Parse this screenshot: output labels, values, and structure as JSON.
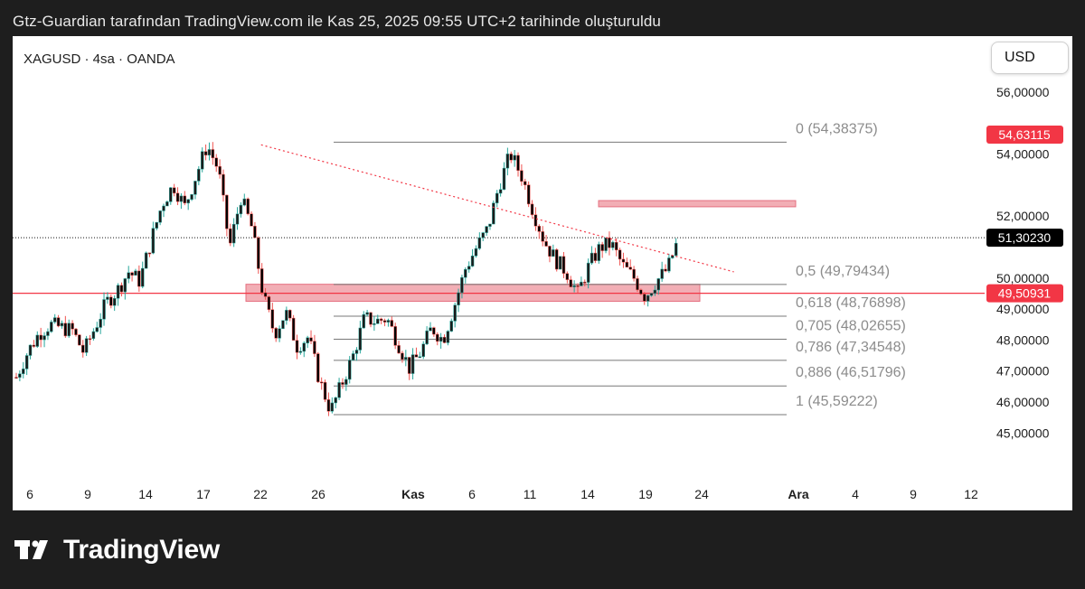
{
  "caption": "Gtz-Guardian tarafından TradingView.com ile Kas 25, 2025 09:55 UTC+2 tarihinde oluşturuldu",
  "header": {
    "symbol_line": "XAGUSD · 4sa · OANDA",
    "currency_button": "USD"
  },
  "brand": {
    "name": "TradingView"
  },
  "colors": {
    "up": "#000000",
    "down": "#000000",
    "wick_up": "#26a69a",
    "wick_down": "#ef5350",
    "zone": "#f0a0a8",
    "alert": "#f23645",
    "fib": "#787878"
  },
  "chart_data": {
    "type": "candlestick",
    "title": "XAGUSD · 4sa · OANDA",
    "ylim": [
      44.4,
      57.1
    ],
    "y_ticks": [
      {
        "value": 56,
        "label": "56,00000"
      },
      {
        "value": 54,
        "label": "54,00000"
      },
      {
        "value": 52,
        "label": "52,00000"
      },
      {
        "value": 50,
        "label": "50,00000"
      },
      {
        "value": 49,
        "label": "49,00000"
      },
      {
        "value": 48,
        "label": "48,00000"
      },
      {
        "value": 47,
        "label": "47,00000"
      },
      {
        "value": 46,
        "label": "46,00000"
      },
      {
        "value": 45,
        "label": "45,00000"
      }
    ],
    "x_ticks": [
      "6",
      "9",
      "14",
      "17",
      "22",
      "26",
      "Kas",
      "6",
      "11",
      "14",
      "19",
      "24",
      "Ara",
      "4",
      "9",
      "12"
    ],
    "price_tags": [
      {
        "value": 54.63115,
        "label": "54,63115",
        "style": "red"
      },
      {
        "value": 51.3023,
        "label": "51,30230",
        "style": "black"
      },
      {
        "value": 49.50931,
        "label": "49,50931",
        "style": "red"
      }
    ],
    "fib_levels": [
      {
        "ratio": "0",
        "value": 54.38375,
        "label": "0 (54,38375)"
      },
      {
        "ratio": "0,5",
        "value": 49.79434,
        "label": "0,5 (49,79434)"
      },
      {
        "ratio": "0,618",
        "value": 48.76898,
        "label": "0,618 (48,76898)"
      },
      {
        "ratio": "0,705",
        "value": 48.02655,
        "label": "0,705 (48,02655)"
      },
      {
        "ratio": "0,786",
        "value": 47.34548,
        "label": "0,786 (47,34548)"
      },
      {
        "ratio": "0,886",
        "value": 46.51796,
        "label": "0,886 (46,51796)"
      },
      {
        "ratio": "1",
        "value": 45.59222,
        "label": "1 (45,59222)"
      }
    ],
    "zones": [
      {
        "from": 49.25,
        "to": 49.8,
        "name": "support-zone"
      },
      {
        "from": 52.3,
        "to": 52.5,
        "name": "resistance-zone"
      }
    ],
    "horizontal_lines": [
      {
        "value": 51.3023,
        "style": "dotted"
      },
      {
        "value": 49.50931,
        "style": "solid-red"
      }
    ],
    "trendline": {
      "from": {
        "x": 21.8,
        "y": 54.3
      },
      "to": {
        "x": 63.9,
        "y": 50.2
      },
      "style": "dotted-red"
    },
    "price_path": [
      {
        "x": 0,
        "y": 46.8
      },
      {
        "x": 1,
        "y": 47.6
      },
      {
        "x": 2,
        "y": 48.2
      },
      {
        "x": 3,
        "y": 48.5
      },
      {
        "x": 4,
        "y": 48.4
      },
      {
        "x": 5,
        "y": 48.3
      },
      {
        "x": 6,
        "y": 47.6
      },
      {
        "x": 7,
        "y": 48.4
      },
      {
        "x": 8,
        "y": 49.2
      },
      {
        "x": 9,
        "y": 49.6
      },
      {
        "x": 10,
        "y": 50.2
      },
      {
        "x": 11,
        "y": 49.9
      },
      {
        "x": 12,
        "y": 51.2
      },
      {
        "x": 13,
        "y": 52.4
      },
      {
        "x": 14,
        "y": 53.0
      },
      {
        "x": 15,
        "y": 52.3
      },
      {
        "x": 16,
        "y": 53.3
      },
      {
        "x": 17,
        "y": 54.3
      },
      {
        "x": 18,
        "y": 53.5
      },
      {
        "x": 19,
        "y": 51.0
      },
      {
        "x": 20,
        "y": 52.6
      },
      {
        "x": 21,
        "y": 51.6
      },
      {
        "x": 22,
        "y": 49.4
      },
      {
        "x": 23,
        "y": 48.2
      },
      {
        "x": 24,
        "y": 48.9
      },
      {
        "x": 25,
        "y": 47.8
      },
      {
        "x": 26,
        "y": 48.1
      },
      {
        "x": 27,
        "y": 46.7
      },
      {
        "x": 28,
        "y": 45.7
      },
      {
        "x": 29,
        "y": 46.6
      },
      {
        "x": 30,
        "y": 47.5
      },
      {
        "x": 31,
        "y": 48.7
      },
      {
        "x": 32,
        "y": 48.6
      },
      {
        "x": 33,
        "y": 48.7
      },
      {
        "x": 34,
        "y": 47.9
      },
      {
        "x": 35,
        "y": 47.1
      },
      {
        "x": 36,
        "y": 47.6
      },
      {
        "x": 37,
        "y": 48.4
      },
      {
        "x": 38,
        "y": 48.0
      },
      {
        "x": 39,
        "y": 49.1
      },
      {
        "x": 40,
        "y": 50.3
      },
      {
        "x": 41,
        "y": 51.0
      },
      {
        "x": 42,
        "y": 51.6
      },
      {
        "x": 43,
        "y": 53.0
      },
      {
        "x": 44,
        "y": 54.0
      },
      {
        "x": 45,
        "y": 53.3
      },
      {
        "x": 46,
        "y": 52.2
      },
      {
        "x": 47,
        "y": 51.2
      },
      {
        "x": 48,
        "y": 50.6
      },
      {
        "x": 49,
        "y": 50.2
      },
      {
        "x": 50,
        "y": 49.5
      },
      {
        "x": 51,
        "y": 50.4
      },
      {
        "x": 52,
        "y": 51.0
      },
      {
        "x": 53,
        "y": 51.1
      },
      {
        "x": 54,
        "y": 50.4
      },
      {
        "x": 55,
        "y": 50.0
      },
      {
        "x": 56,
        "y": 49.4
      },
      {
        "x": 57,
        "y": 49.9
      },
      {
        "x": 58,
        "y": 50.3
      },
      {
        "x": 59,
        "y": 51.3
      }
    ]
  }
}
